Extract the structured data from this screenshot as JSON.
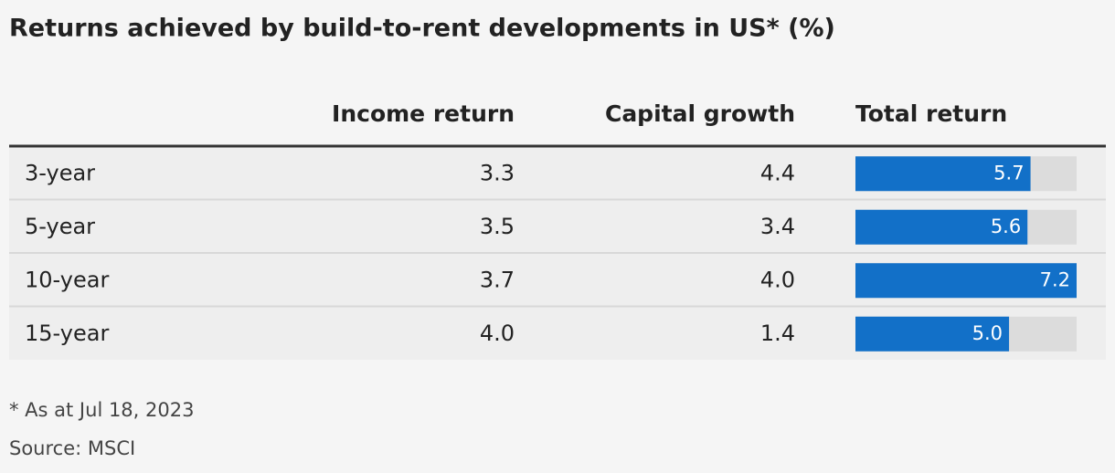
{
  "title": "Returns achieved by build-to-rent developments in US* (%)",
  "table": {
    "columns": [
      "Income return",
      "Capital growth",
      "Total return"
    ],
    "rows": [
      {
        "label": "3-year",
        "income": "3.3",
        "capital": "4.4",
        "total": 5.7
      },
      {
        "label": "5-year",
        "income": "3.5",
        "capital": "3.4",
        "total": 5.6
      },
      {
        "label": "10-year",
        "income": "3.7",
        "capital": "4.0",
        "total": 7.2
      },
      {
        "label": "15-year",
        "income": "4.0",
        "capital": "1.4",
        "total": {
          "value": 5,
          "label": "5.0"
        }
      }
    ],
    "bar_color": "#1270c8"
  },
  "footnote": "* As at Jul 18, 2023",
  "source": "Source: MSCI"
}
